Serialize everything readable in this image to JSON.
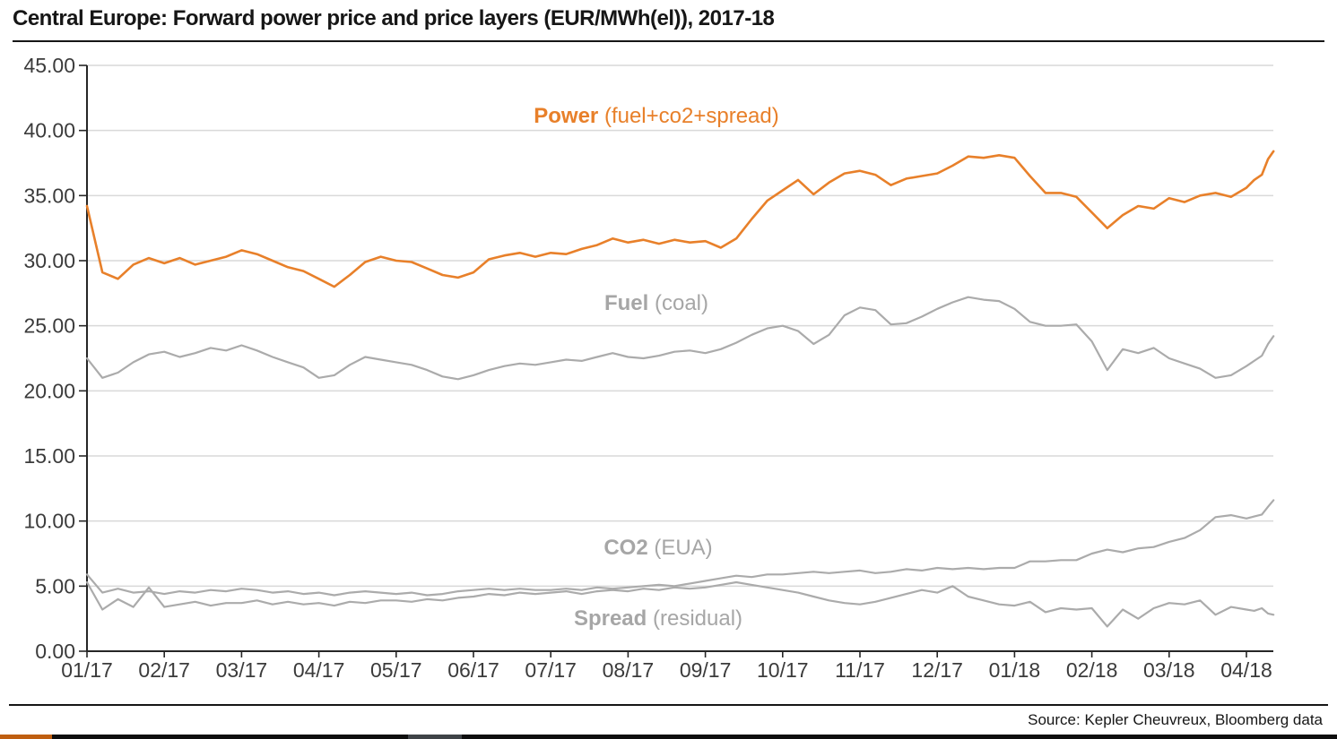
{
  "title": "Central Europe: Forward power price and price layers (EUR/MWh(el)), 2017-18",
  "source": "Source: Kepler Cheuvreux, Bloomberg data",
  "annotations": {
    "power": {
      "bold": "Power",
      "rest": " (fuel+co2+spread)"
    },
    "fuel": {
      "bold": "Fuel",
      "rest": " (coal)"
    },
    "co2": {
      "bold": "CO2",
      "rest": " (EUA)"
    },
    "spread": {
      "bold": "Spread",
      "rest": " (residual)"
    }
  },
  "colors": {
    "power_line": "#e8802a",
    "gray_line": "#ababab",
    "grid": "#d9d9d9",
    "axis": "#262626",
    "tick_label": "#3b3b3b",
    "bar_orange": "#bf5e10",
    "bar_black": "#0e0e0e",
    "bar_gray": "#3f4347"
  },
  "chart_data": {
    "type": "line",
    "title": "Central Europe: Forward power price and price layers (EUR/MWh(el)), 2017-18",
    "xlabel": "",
    "ylabel": "EUR/MWh(el)",
    "ylim": [
      0,
      45
    ],
    "grid": "horizontal",
    "legend_position": "inline-annotations",
    "y_ticks": [
      "0.00",
      "5.00",
      "10.00",
      "15.00",
      "20.00",
      "25.00",
      "30.00",
      "35.00",
      "40.00",
      "45.00"
    ],
    "x_ticks": [
      "01/17",
      "02/17",
      "03/17",
      "04/17",
      "05/17",
      "06/17",
      "07/17",
      "08/17",
      "09/17",
      "10/17",
      "11/17",
      "12/17",
      "01/18",
      "02/18",
      "03/18",
      "04/18"
    ],
    "x_unit": "months since 2017-01",
    "x": [
      0,
      0.2,
      0.4,
      0.6,
      0.8,
      1.0,
      1.2,
      1.4,
      1.6,
      1.8,
      2.0,
      2.2,
      2.4,
      2.6,
      2.8,
      3.0,
      3.2,
      3.4,
      3.6,
      3.8,
      4.0,
      4.2,
      4.4,
      4.6,
      4.8,
      5.0,
      5.2,
      5.4,
      5.6,
      5.8,
      6.0,
      6.2,
      6.4,
      6.6,
      6.8,
      7.0,
      7.2,
      7.4,
      7.6,
      7.8,
      8.0,
      8.2,
      8.4,
      8.6,
      8.8,
      9.0,
      9.2,
      9.4,
      9.6,
      9.8,
      10.0,
      10.2,
      10.4,
      10.6,
      10.8,
      11.0,
      11.2,
      11.4,
      11.6,
      11.8,
      12.0,
      12.2,
      12.4,
      12.6,
      12.8,
      13.0,
      13.2,
      13.4,
      13.6,
      13.8,
      14.0,
      14.2,
      14.4,
      14.6,
      14.8,
      15.0,
      15.1,
      15.2,
      15.28,
      15.35
    ],
    "series": [
      {
        "name": "Power (fuel+co2+spread)",
        "color": "#e8802a",
        "width": 2.6,
        "values": [
          34.2,
          29.1,
          28.6,
          29.7,
          30.2,
          29.8,
          30.2,
          29.7,
          30.0,
          30.3,
          30.8,
          30.5,
          30.0,
          29.5,
          29.2,
          28.6,
          28.0,
          28.9,
          29.9,
          30.3,
          30.0,
          29.9,
          29.4,
          28.9,
          28.7,
          29.1,
          30.1,
          30.4,
          30.6,
          30.3,
          30.6,
          30.5,
          30.9,
          31.2,
          31.7,
          31.4,
          31.6,
          31.3,
          31.6,
          31.4,
          31.5,
          31.0,
          31.7,
          33.2,
          34.6,
          35.4,
          36.2,
          35.1,
          36.0,
          36.7,
          36.9,
          36.6,
          35.8,
          36.3,
          36.5,
          36.7,
          37.3,
          38.0,
          37.9,
          38.1,
          37.9,
          36.5,
          35.2,
          35.2,
          34.9,
          33.7,
          32.5,
          33.5,
          34.2,
          34.0,
          34.8,
          34.5,
          35.0,
          35.2,
          34.9,
          35.6,
          36.2,
          36.6,
          37.8,
          38.4
        ]
      },
      {
        "name": "Fuel (coal)",
        "color": "#ababab",
        "width": 2.2,
        "values": [
          22.5,
          21.0,
          21.4,
          22.2,
          22.8,
          23.0,
          22.6,
          22.9,
          23.3,
          23.1,
          23.5,
          23.1,
          22.6,
          22.2,
          21.8,
          21.0,
          21.2,
          22.0,
          22.6,
          22.4,
          22.2,
          22.0,
          21.6,
          21.1,
          20.9,
          21.2,
          21.6,
          21.9,
          22.1,
          22.0,
          22.2,
          22.4,
          22.3,
          22.6,
          22.9,
          22.6,
          22.5,
          22.7,
          23.0,
          23.1,
          22.9,
          23.2,
          23.7,
          24.3,
          24.8,
          25.0,
          24.6,
          23.6,
          24.3,
          25.8,
          26.4,
          26.2,
          25.1,
          25.2,
          25.7,
          26.3,
          26.8,
          27.2,
          27.0,
          26.9,
          26.3,
          25.3,
          25.0,
          25.0,
          25.1,
          23.8,
          21.6,
          23.2,
          22.9,
          23.3,
          22.5,
          22.1,
          21.7,
          21.0,
          21.2,
          21.9,
          22.3,
          22.7,
          23.6,
          24.2
        ]
      },
      {
        "name": "CO2 (EUA)",
        "color": "#ababab",
        "width": 2.2,
        "values": [
          5.9,
          4.5,
          4.8,
          4.5,
          4.6,
          4.4,
          4.6,
          4.5,
          4.7,
          4.6,
          4.8,
          4.7,
          4.5,
          4.6,
          4.4,
          4.5,
          4.3,
          4.5,
          4.6,
          4.5,
          4.4,
          4.5,
          4.3,
          4.4,
          4.6,
          4.7,
          4.8,
          4.7,
          4.8,
          4.7,
          4.7,
          4.8,
          4.7,
          4.9,
          4.8,
          4.9,
          5.0,
          5.1,
          5.0,
          5.2,
          5.4,
          5.6,
          5.8,
          5.7,
          5.9,
          5.9,
          6.0,
          6.1,
          6.0,
          6.1,
          6.2,
          6.0,
          6.1,
          6.3,
          6.2,
          6.4,
          6.3,
          6.4,
          6.3,
          6.4,
          6.4,
          6.9,
          6.9,
          7.0,
          7.0,
          7.5,
          7.8,
          7.6,
          7.9,
          8.0,
          8.4,
          8.7,
          9.3,
          10.3,
          10.45,
          10.2,
          10.35,
          10.5,
          11.1,
          11.6
        ]
      },
      {
        "name": "Spread (residual)",
        "color": "#ababab",
        "width": 2.2,
        "values": [
          5.3,
          3.2,
          4.0,
          3.4,
          4.9,
          3.4,
          3.6,
          3.8,
          3.5,
          3.7,
          3.7,
          3.9,
          3.6,
          3.8,
          3.6,
          3.7,
          3.5,
          3.8,
          3.7,
          3.9,
          3.9,
          3.8,
          4.0,
          3.9,
          4.1,
          4.2,
          4.4,
          4.3,
          4.5,
          4.4,
          4.5,
          4.6,
          4.4,
          4.6,
          4.7,
          4.6,
          4.8,
          4.7,
          4.9,
          4.8,
          4.9,
          5.1,
          5.3,
          5.1,
          4.9,
          4.7,
          4.5,
          4.2,
          3.9,
          3.7,
          3.6,
          3.8,
          4.1,
          4.4,
          4.7,
          4.5,
          5.0,
          4.2,
          3.9,
          3.6,
          3.5,
          3.8,
          3.0,
          3.3,
          3.2,
          3.3,
          1.9,
          3.2,
          2.5,
          3.3,
          3.7,
          3.6,
          3.9,
          2.8,
          3.4,
          3.2,
          3.1,
          3.3,
          2.9,
          2.8
        ]
      }
    ]
  }
}
